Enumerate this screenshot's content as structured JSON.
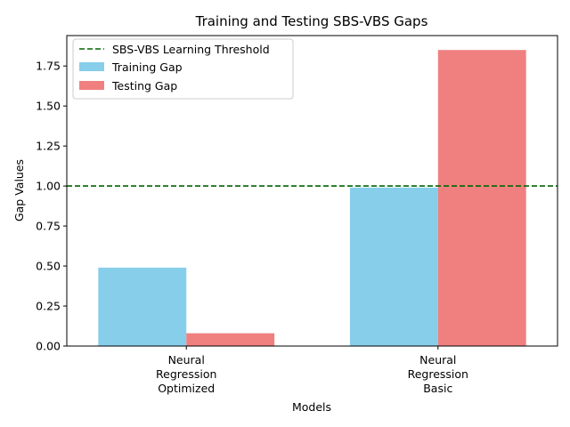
{
  "chart_data": {
    "type": "bar",
    "title": "Training and Testing SBS-VBS Gaps",
    "xlabel": "Models",
    "ylabel": "Gap Values",
    "categories": [
      [
        "Neural",
        "Regression",
        "Optimized"
      ],
      [
        "Neural",
        "Regression",
        "Basic"
      ]
    ],
    "series": [
      {
        "name": "Training Gap",
        "color": "#87ceeb",
        "values": [
          0.49,
          0.99
        ]
      },
      {
        "name": "Testing Gap",
        "color": "#f08080",
        "values": [
          0.08,
          1.85
        ]
      }
    ],
    "threshold": {
      "name": "SBS-VBS Learning Threshold",
      "value": 1.0,
      "color": "#006400",
      "style": "dashed"
    },
    "ylim": [
      0,
      1.94
    ],
    "yticks": [
      0.0,
      0.25,
      0.5,
      0.75,
      1.0,
      1.25,
      1.5,
      1.75
    ],
    "ytick_labels": [
      "0.00",
      "0.25",
      "0.50",
      "0.75",
      "1.00",
      "1.25",
      "1.50",
      "1.75"
    ],
    "grid": false,
    "legend_position": "top-left"
  }
}
